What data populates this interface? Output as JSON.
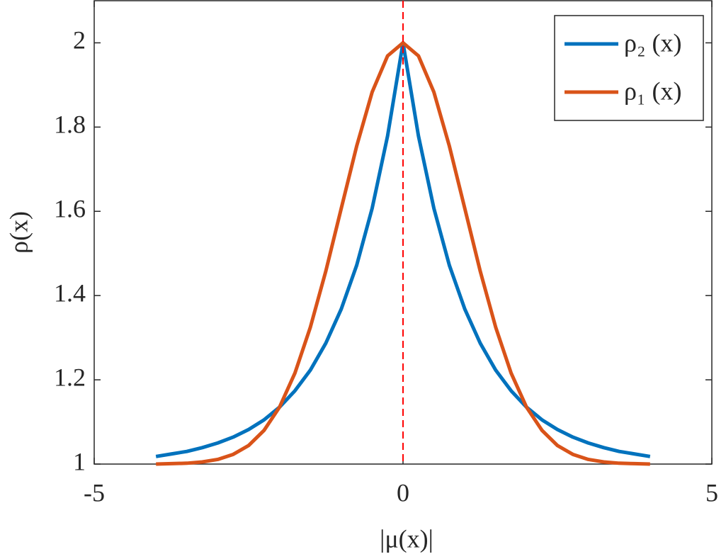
{
  "chart_data": {
    "type": "line",
    "xlabel": "|μ(x)|",
    "ylabel": "ρ(x)",
    "x": [
      -4,
      -3.75,
      -3.5,
      -3.25,
      -3,
      -2.75,
      -2.5,
      -2.25,
      -2,
      -1.75,
      -1.5,
      -1.25,
      -1,
      -0.75,
      -0.5,
      -0.25,
      0,
      0.25,
      0.5,
      0.75,
      1,
      1.25,
      1.5,
      1.75,
      2,
      2.25,
      2.5,
      2.75,
      3,
      3.25,
      3.5,
      3.75,
      4
    ],
    "series": [
      {
        "name": "ρ₂ (x)",
        "color": "#0072bd",
        "values": [
          1.018,
          1.024,
          1.03,
          1.039,
          1.05,
          1.064,
          1.082,
          1.105,
          1.135,
          1.174,
          1.223,
          1.287,
          1.368,
          1.472,
          1.607,
          1.779,
          2,
          1.779,
          1.607,
          1.472,
          1.368,
          1.287,
          1.223,
          1.174,
          1.135,
          1.105,
          1.082,
          1.064,
          1.05,
          1.039,
          1.03,
          1.024,
          1.018
        ]
      },
      {
        "name": "ρ₁ (x)",
        "color": "#d95319",
        "values": [
          1,
          1.001,
          1.002,
          1.005,
          1.011,
          1.023,
          1.044,
          1.08,
          1.135,
          1.216,
          1.325,
          1.458,
          1.607,
          1.755,
          1.883,
          1.969,
          2,
          1.969,
          1.883,
          1.755,
          1.607,
          1.458,
          1.325,
          1.216,
          1.135,
          1.08,
          1.044,
          1.023,
          1.011,
          1.005,
          1.002,
          1.001,
          1
        ]
      }
    ],
    "vline": {
      "x": 0,
      "color": "#ff0000"
    },
    "xlim": [
      -5,
      5
    ],
    "ylim": [
      1,
      2.1
    ],
    "xticks": [
      -5,
      0,
      5
    ],
    "yticks": [
      1,
      1.2,
      1.4,
      1.6,
      1.8,
      2
    ],
    "legend": "upper right"
  }
}
